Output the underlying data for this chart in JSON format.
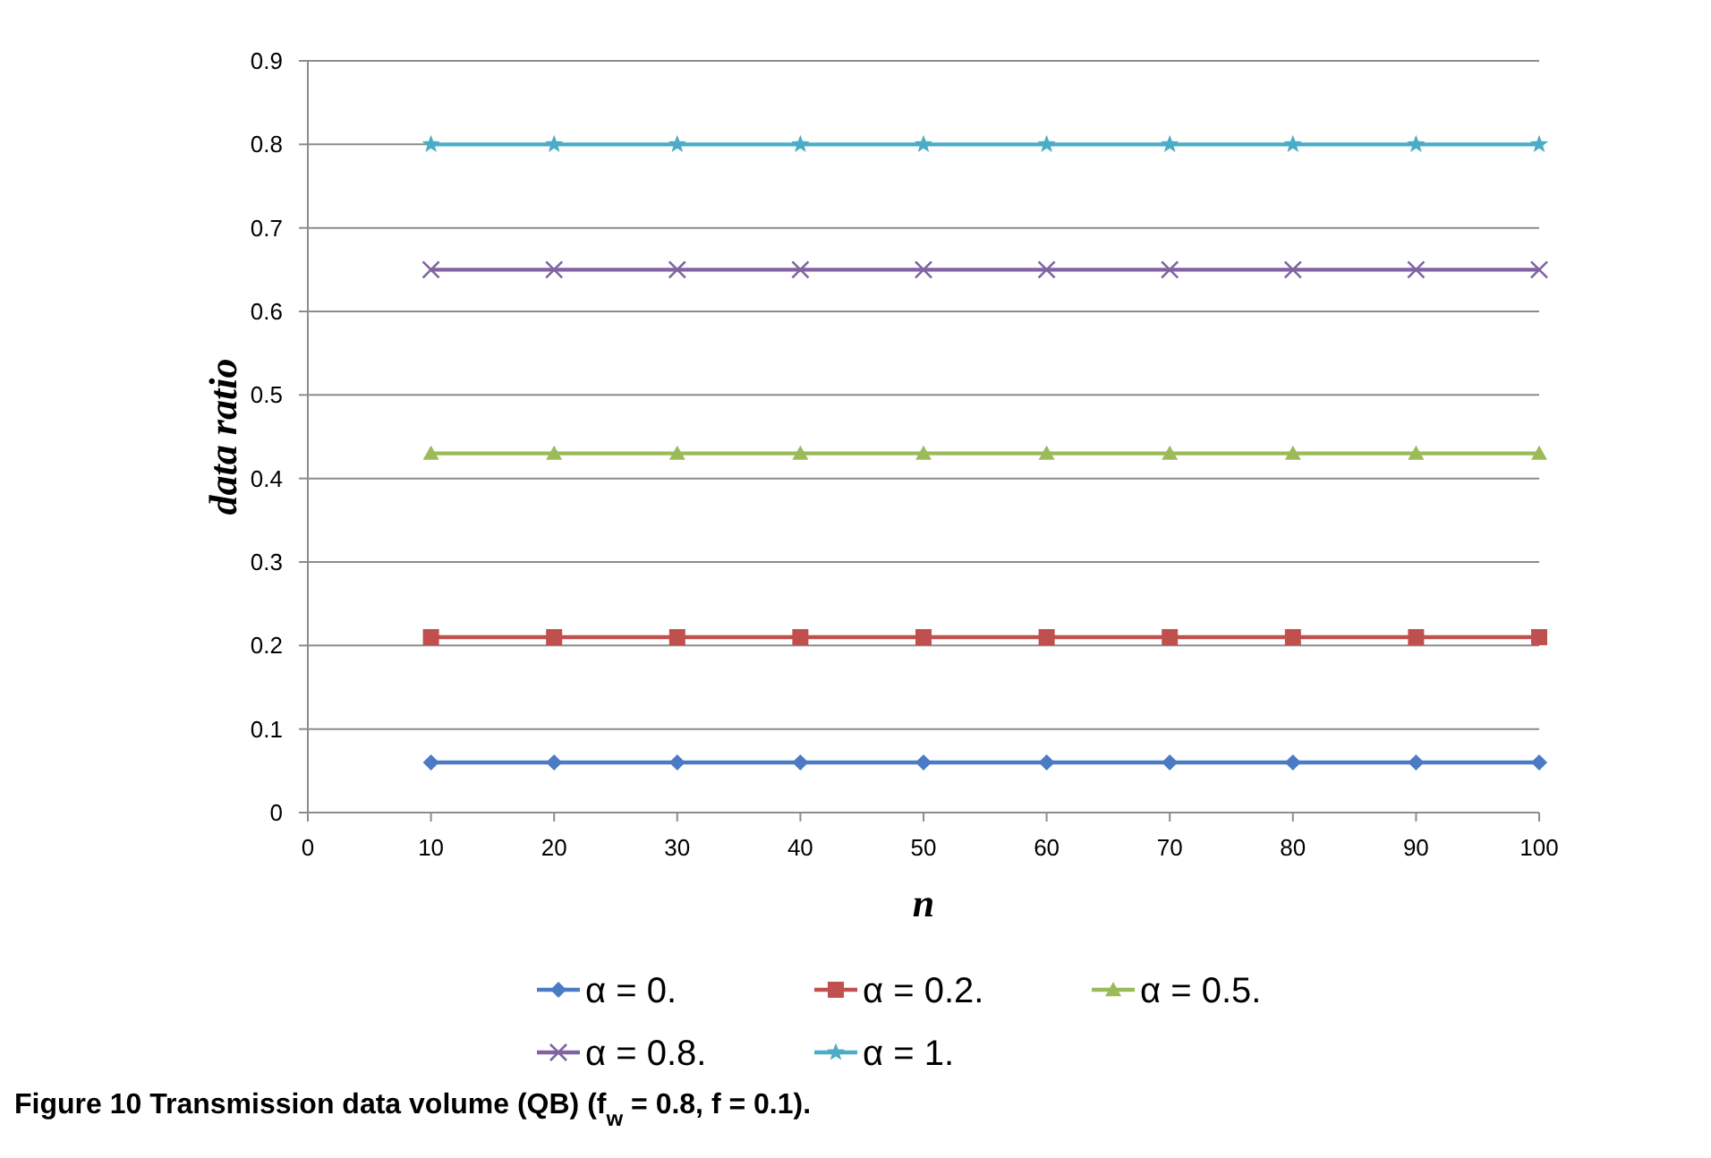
{
  "chart_data": {
    "type": "line",
    "xlabel": "n",
    "ylabel": "data ratio",
    "x": [
      10,
      20,
      30,
      40,
      50,
      60,
      70,
      80,
      90,
      100
    ],
    "xlim": [
      0,
      100
    ],
    "xticks": [
      0,
      10,
      20,
      30,
      40,
      50,
      60,
      70,
      80,
      90,
      100
    ],
    "ylim": [
      0,
      0.9
    ],
    "yticks": [
      0,
      0.1,
      0.2,
      0.3,
      0.4,
      0.5,
      0.6,
      0.7,
      0.8,
      0.9
    ],
    "grid": "y",
    "legend": "bottom",
    "line_style": "solid",
    "series": [
      {
        "name": "α = 0.",
        "color": "#4a7bc4",
        "marker": "diamond",
        "values": [
          0.06,
          0.06,
          0.06,
          0.06,
          0.06,
          0.06,
          0.06,
          0.06,
          0.06,
          0.06
        ]
      },
      {
        "name": "α = 0.2.",
        "color": "#c0504d",
        "marker": "square",
        "values": [
          0.21,
          0.21,
          0.21,
          0.21,
          0.21,
          0.21,
          0.21,
          0.21,
          0.21,
          0.21
        ]
      },
      {
        "name": "α = 0.5.",
        "color": "#9bbb59",
        "marker": "triangle",
        "values": [
          0.43,
          0.43,
          0.43,
          0.43,
          0.43,
          0.43,
          0.43,
          0.43,
          0.43,
          0.43
        ]
      },
      {
        "name": "α = 0.8.",
        "color": "#8064a2",
        "marker": "cross",
        "values": [
          0.65,
          0.65,
          0.65,
          0.65,
          0.65,
          0.65,
          0.65,
          0.65,
          0.65,
          0.65
        ]
      },
      {
        "name": "α = 1.",
        "color": "#4bacc6",
        "marker": "star",
        "values": [
          0.8,
          0.8,
          0.8,
          0.8,
          0.8,
          0.8,
          0.8,
          0.8,
          0.8,
          0.8
        ]
      }
    ],
    "annotations": [
      "Figure 10 Transmission data volume (QB) (f$_{w}$ = 0.8, f = 0.1)."
    ]
  }
}
